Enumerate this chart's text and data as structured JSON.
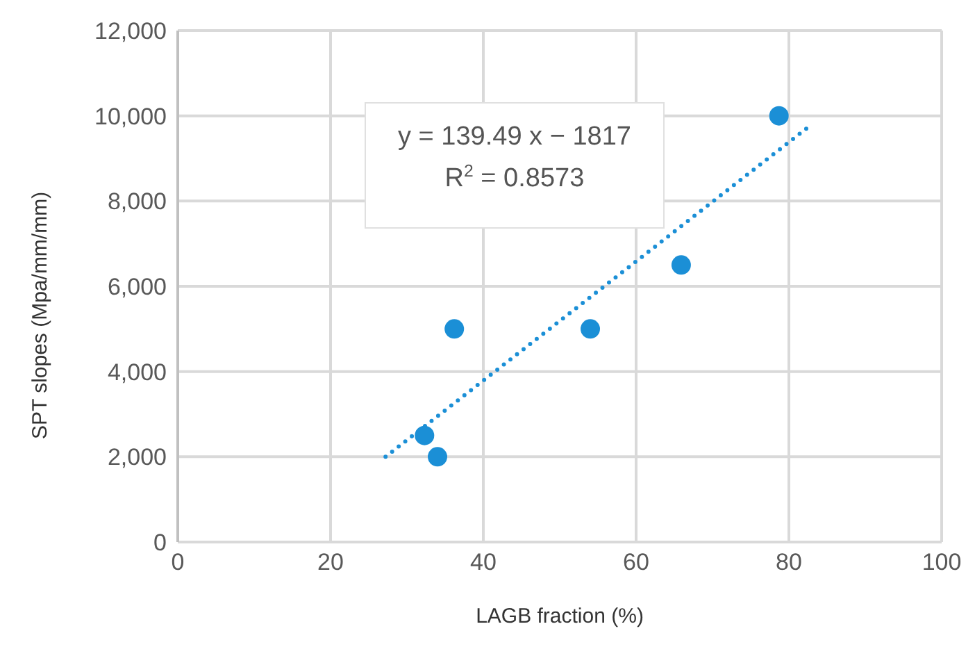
{
  "chart_data": {
    "type": "scatter",
    "xlabel": "LAGB fraction (%)",
    "ylabel": "SPT slopes (Mpa/mm/mm)",
    "xlim": [
      0,
      100
    ],
    "xticks": [
      0,
      20,
      40,
      60,
      80,
      100
    ],
    "ylim": [
      0,
      12000
    ],
    "yticks": [
      {
        "value": 0,
        "label": "0"
      },
      {
        "value": 2000,
        "label": "2,000"
      },
      {
        "value": 4000,
        "label": "4,000"
      },
      {
        "value": 6000,
        "label": "6,000"
      },
      {
        "value": 8000,
        "label": "8,000"
      },
      {
        "value": 10000,
        "label": "10,000"
      },
      {
        "value": 12000,
        "label": "12,000"
      }
    ],
    "grid": true,
    "marker": "circle",
    "series": [
      {
        "color": "#1b8fd6",
        "x": [
          32.3,
          34,
          36.2,
          54,
          65.9,
          78.7
        ],
        "values": [
          2500,
          2000,
          5000,
          5000,
          6500,
          10000
        ]
      },
      {
        "type": "line",
        "color": "#1b8fd6",
        "line_style": "dotted",
        "marker": "none",
        "x": [
          27.2,
          83
        ],
        "values": [
          2000,
          9800
        ]
      }
    ],
    "annotations": [
      "y = 139.49 x − 1817",
      "R$^{2}$ = 0.8573"
    ]
  }
}
